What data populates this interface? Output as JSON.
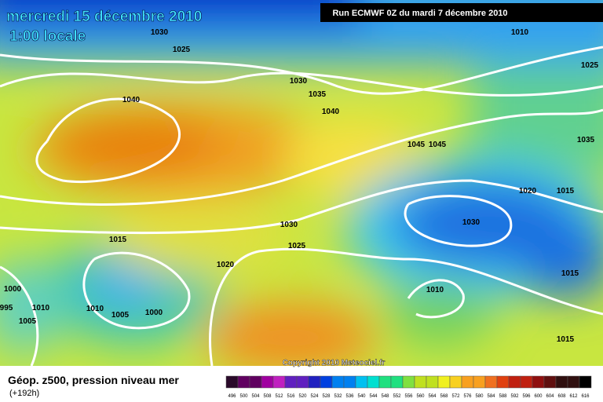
{
  "header": {
    "title": "mercredi 15 décembre 2010",
    "subtitle": "1:00 locale",
    "run": "Run ECMWF 0Z du mardi 7 décembre 2010"
  },
  "isobar_labels": [
    "1030",
    "1025",
    "1040",
    "1030",
    "1035",
    "1040",
    "1010",
    "1025",
    "1035",
    "1045",
    "1045",
    "1020",
    "1015",
    "1030",
    "1030",
    "1025",
    "1015",
    "1020",
    "1015",
    "1010",
    "1010",
    "1005",
    "1000",
    "1010",
    "1005",
    "995",
    "1000",
    "1015"
  ],
  "copyright": "Copyright 2010 Meteociel.fr",
  "footer": {
    "title": "Géop. z500, pression niveau mer",
    "lead": "(+192h)"
  },
  "color_scale": [
    496,
    500,
    504,
    508,
    512,
    516,
    520,
    524,
    528,
    532,
    536,
    540,
    544,
    548,
    552,
    556,
    560,
    564,
    568,
    572,
    576,
    580,
    584,
    588,
    592,
    596,
    600,
    604,
    608,
    612,
    616
  ]
}
